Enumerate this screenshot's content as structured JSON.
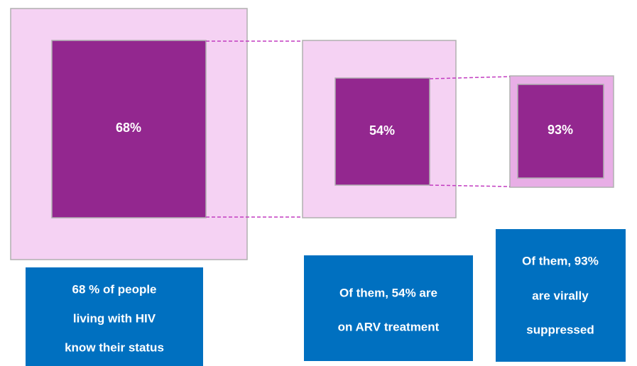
{
  "steps": [
    {
      "label": "68%",
      "caption": [
        "68 % of people",
        "living with HIV",
        "know their status"
      ]
    },
    {
      "label": "54%",
      "caption": [
        "Of them, 54% are",
        "on ARV treatment"
      ]
    },
    {
      "label": "93%",
      "caption": [
        "Of them, 93%",
        "are virally",
        "suppressed"
      ]
    }
  ]
}
